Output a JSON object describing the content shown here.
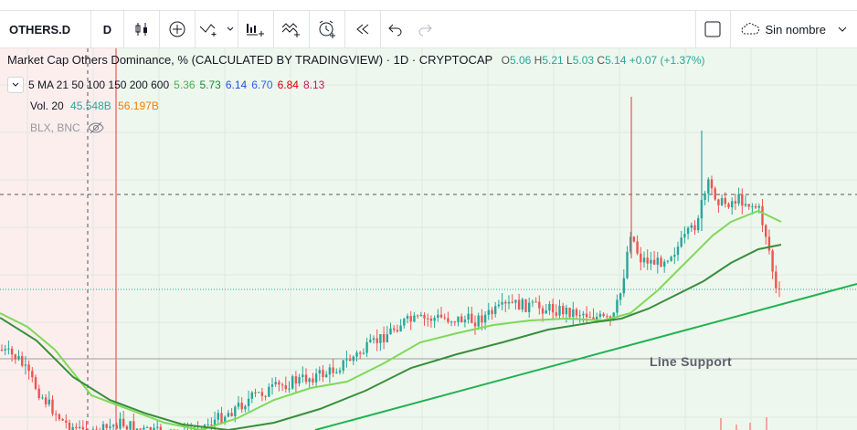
{
  "toolbar": {
    "symbol": "OTHERS.D",
    "interval": "D",
    "layout_name": "Sin nombre",
    "icons": [
      "candles-icon",
      "add-indicator-icon",
      "drawing-icon",
      "chevron-down-icon",
      "bar-chart-icon",
      "compare-icon",
      "alert-icon",
      "replay-icon",
      "undo-icon",
      "redo-icon",
      "checkbox-icon",
      "cloud-icon",
      "chevron-down-icon"
    ]
  },
  "legend": {
    "title": "Market Cap Others Dominance, % (CALCULATED BY TRADINGVIEW) · 1D · CRYPTOCAP",
    "open_label": "O",
    "open": "5.06",
    "high_label": "H",
    "high": "5.21",
    "low_label": "L",
    "low": "5.03",
    "close_label": "C",
    "close": "5.14",
    "change": "+0.07 (+1.37%)"
  },
  "ma": {
    "label": "5 MA 21 50 100 150 200 600",
    "values": [
      "5.36",
      "5.73",
      "6.14",
      "6.70",
      "6.84",
      "8.13"
    ],
    "colors": [
      "#4caf50",
      "#1b8a3a",
      "#1e53e5",
      "#2962ff",
      "#d50000",
      "#c2185b"
    ]
  },
  "volume": {
    "label": "Vol. 20",
    "v1": "45.548B",
    "v2": "56.197B",
    "c1": "#26a69a",
    "c2": "#f57c00"
  },
  "source": {
    "label": "BLX, BNC",
    "icon": "eye-crossed-icon"
  },
  "annotation": "Line Support",
  "colors": {
    "up": "#26a69a",
    "down": "#ef5350",
    "ma_light": "#7ed957",
    "ma_dark": "#388e3c",
    "support": "#1fb34f"
  }
}
